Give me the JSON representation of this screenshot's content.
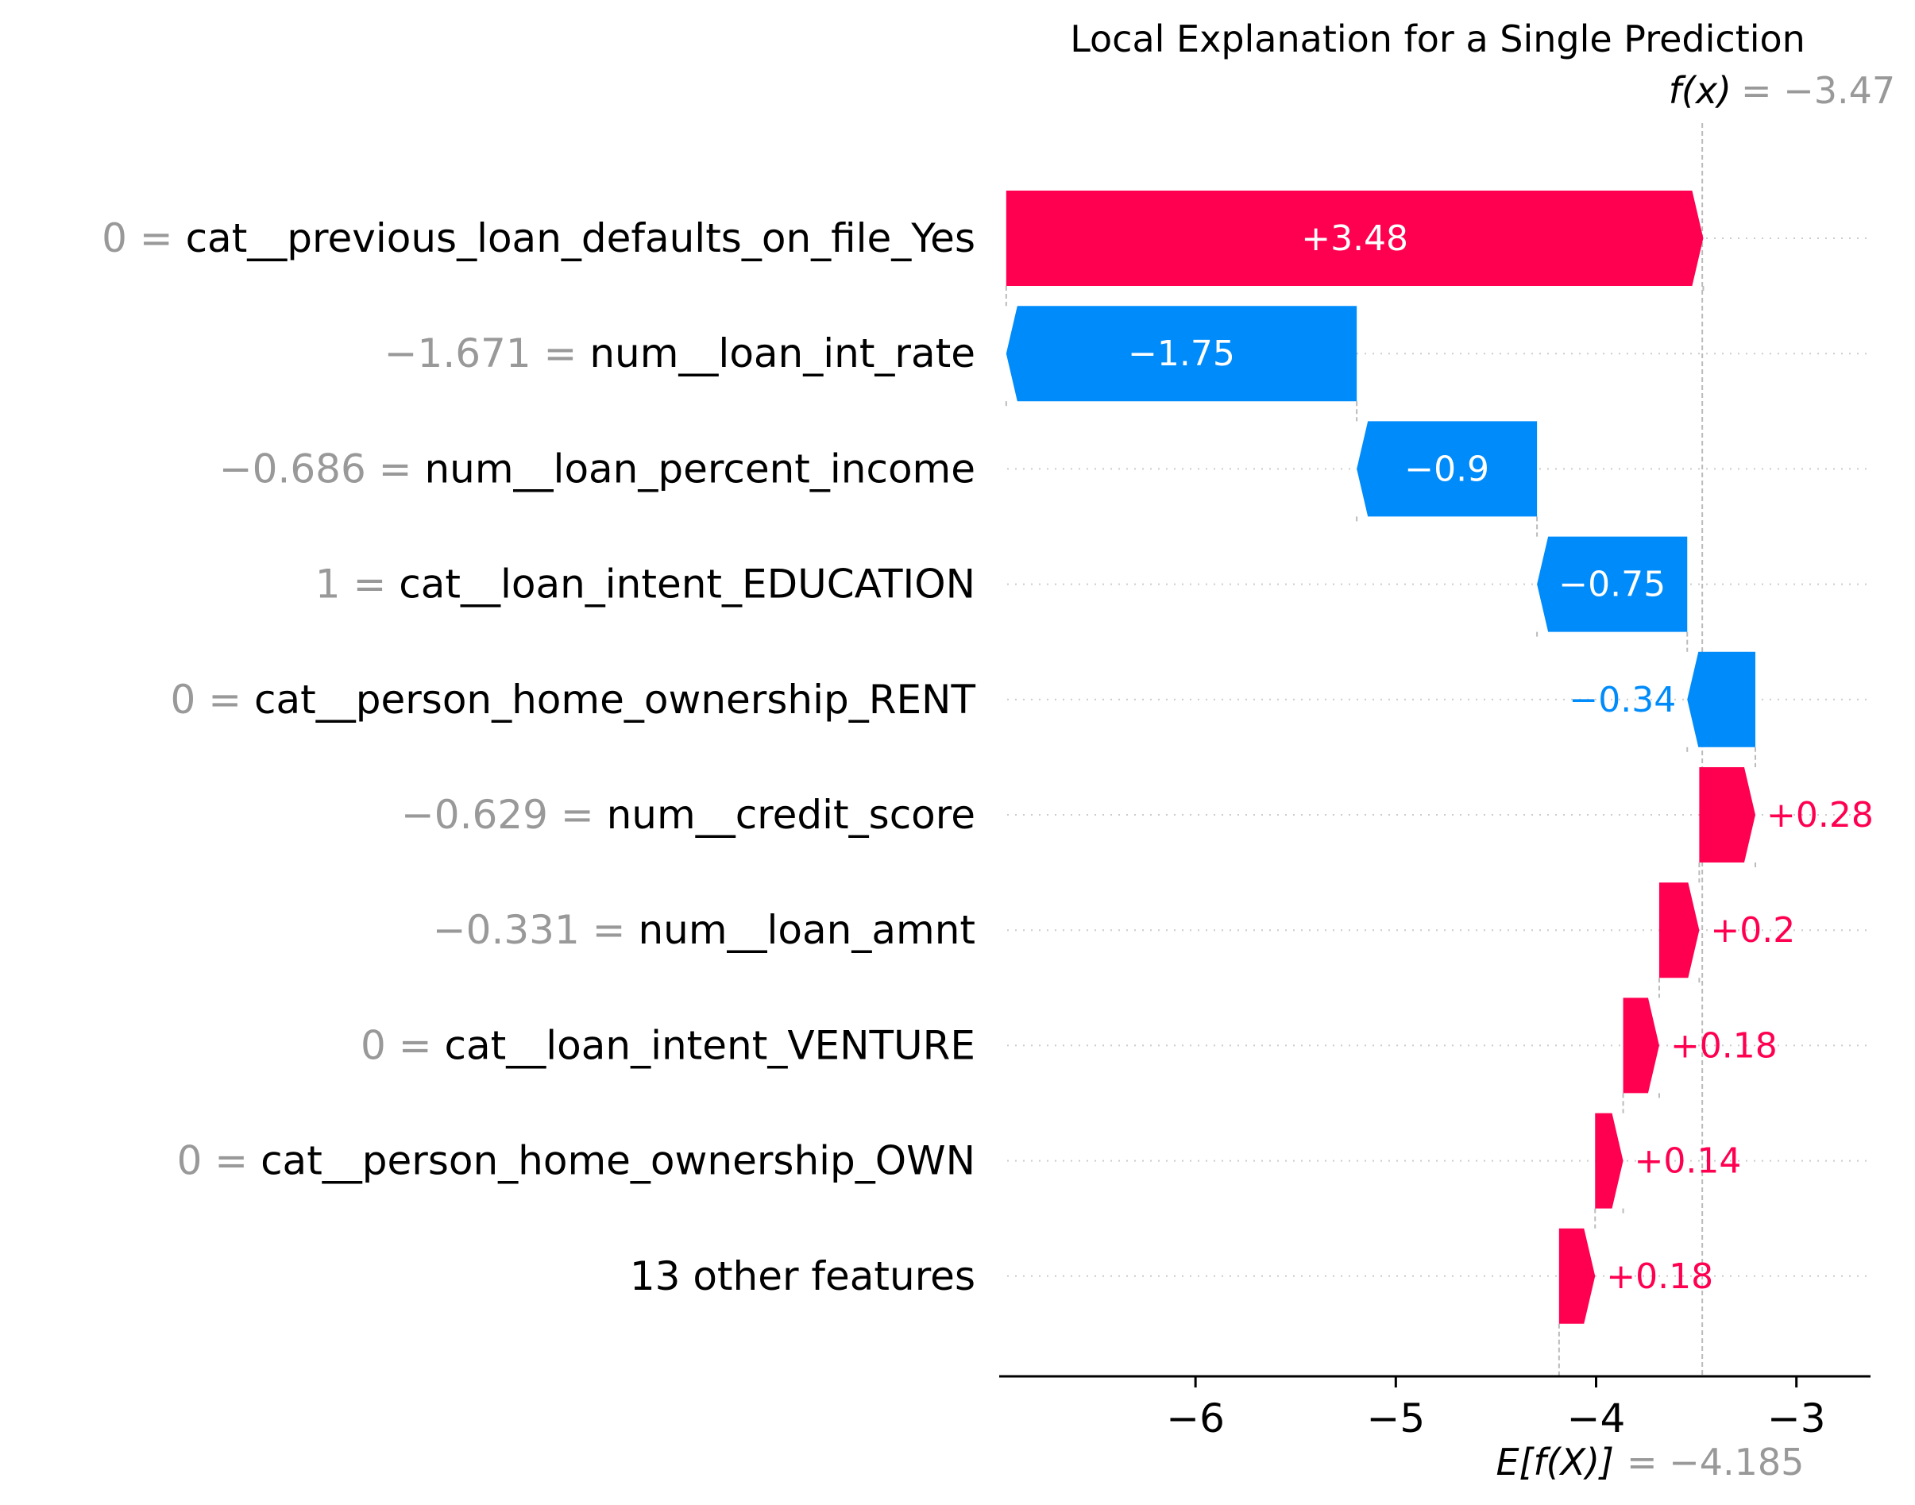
{
  "chart_data": {
    "type": "waterfall",
    "title": "Local Explanation for a Single Prediction",
    "fx": {
      "label": "f(x)",
      "value_text": "= −3.47",
      "value": -3.47
    },
    "base": {
      "label": "E[f(X)]",
      "value_text": "= −4.185",
      "value": -4.185
    },
    "xlim": [
      -6.98,
      -2.63
    ],
    "xticks": [
      -6,
      -5,
      -4,
      -3
    ],
    "xtick_labels": [
      "−6",
      "−5",
      "−4",
      "−3"
    ],
    "features": [
      {
        "value_text": "0 =",
        "name": "cat__previous_loan_defaults_on_file_Yes",
        "contribution": 3.48,
        "label": "+3.48"
      },
      {
        "value_text": "−1.671 =",
        "name": "num__loan_int_rate",
        "contribution": -1.75,
        "label": "−1.75"
      },
      {
        "value_text": "−0.686 =",
        "name": "num__loan_percent_income",
        "contribution": -0.9,
        "label": "−0.9"
      },
      {
        "value_text": "1 =",
        "name": "cat__loan_intent_EDUCATION",
        "contribution": -0.75,
        "label": "−0.75"
      },
      {
        "value_text": "0 =",
        "name": "cat__person_home_ownership_RENT",
        "contribution": -0.34,
        "label": "−0.34"
      },
      {
        "value_text": "−0.629 =",
        "name": "num__credit_score",
        "contribution": 0.28,
        "label": "+0.28"
      },
      {
        "value_text": "−0.331 =",
        "name": "num__loan_amnt",
        "contribution": 0.2,
        "label": "+0.2"
      },
      {
        "value_text": "0 =",
        "name": "cat__loan_intent_VENTURE",
        "contribution": 0.18,
        "label": "+0.18"
      },
      {
        "value_text": "0 =",
        "name": "cat__person_home_ownership_OWN",
        "contribution": 0.14,
        "label": "+0.14"
      },
      {
        "value_text": "",
        "name": "13 other features",
        "contribution": 0.18,
        "label": "+0.18"
      }
    ],
    "colors": {
      "positive": "#ff0051",
      "negative": "#008bfb",
      "muted": "#999999",
      "text": "#000000",
      "grid": "#cccccc",
      "connector": "#bbbbbb"
    }
  }
}
